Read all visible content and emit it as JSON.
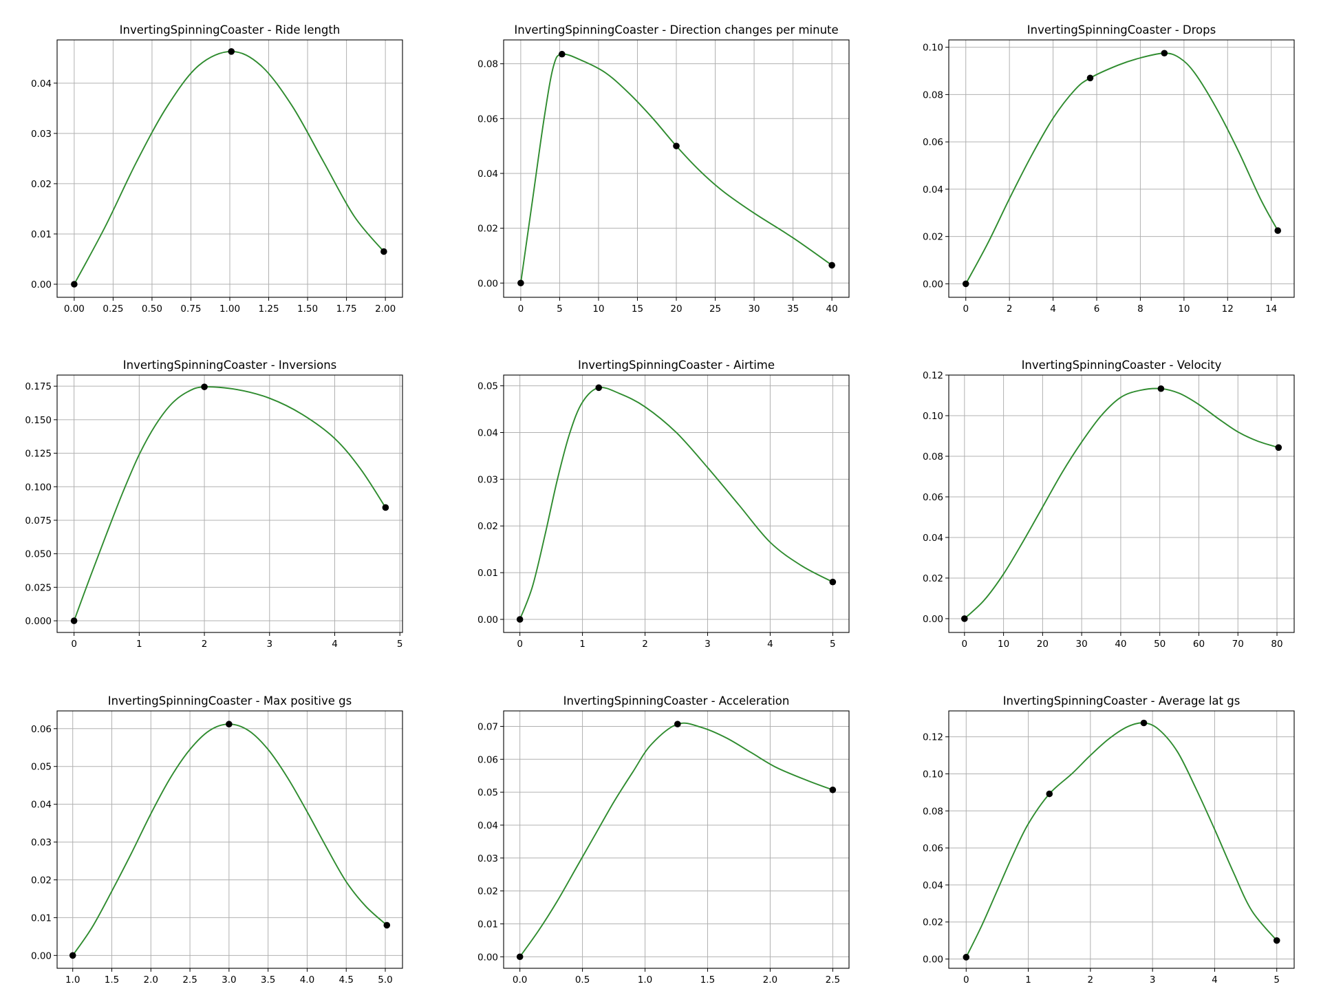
{
  "colors": {
    "line": "#2e8b2e",
    "marker": "#000000",
    "grid": "#b0b0b0"
  },
  "chart_data": [
    {
      "type": "line",
      "title": "InvertingSpinningCoaster - Ride length",
      "xlim": [
        -0.11,
        2.11
      ],
      "ylim": [
        -0.0026,
        0.0486
      ],
      "xticks": [
        0,
        0.25,
        0.5,
        0.75,
        1.0,
        1.25,
        1.5,
        1.75,
        2.0
      ],
      "xtick_labels": [
        "0.00",
        "0.25",
        "0.50",
        "0.75",
        "1.00",
        "1.25",
        "1.50",
        "1.75",
        "2.00"
      ],
      "yticks": [
        0,
        0.01,
        0.02,
        0.03,
        0.04
      ],
      "ytick_labels": [
        "0.00",
        "0.01",
        "0.02",
        "0.03",
        "0.04"
      ],
      "grid": true,
      "points": [
        {
          "x": 0.0,
          "y": 0.0
        },
        {
          "x": 1.01,
          "y": 0.0463
        },
        {
          "x": 1.99,
          "y": 0.0065
        }
      ],
      "curve": [
        [
          0.0,
          0.0
        ],
        [
          0.2,
          0.0115
        ],
        [
          0.4,
          0.0243
        ],
        [
          0.6,
          0.0355
        ],
        [
          0.8,
          0.0435
        ],
        [
          1.01,
          0.0463
        ],
        [
          1.2,
          0.0435
        ],
        [
          1.4,
          0.0355
        ],
        [
          1.6,
          0.0245
        ],
        [
          1.8,
          0.0135
        ],
        [
          1.99,
          0.0065
        ]
      ]
    },
    {
      "type": "line",
      "title": "InvertingSpinningCoaster - Direction changes per minute",
      "xlim": [
        -2.2,
        42.2
      ],
      "ylim": [
        -0.0052,
        0.0887
      ],
      "xticks": [
        0,
        5,
        10,
        15,
        20,
        25,
        30,
        35,
        40
      ],
      "xtick_labels": [
        "0",
        "5",
        "10",
        "15",
        "20",
        "25",
        "30",
        "35",
        "40"
      ],
      "yticks": [
        0,
        0.02,
        0.04,
        0.06,
        0.08
      ],
      "ytick_labels": [
        "0.00",
        "0.02",
        "0.04",
        "0.06",
        "0.08"
      ],
      "grid": true,
      "points": [
        {
          "x": 0.0,
          "y": 0.0
        },
        {
          "x": 5.3,
          "y": 0.0835
        },
        {
          "x": 20.0,
          "y": 0.05
        },
        {
          "x": 40.0,
          "y": 0.0065
        }
      ],
      "curve": [
        [
          0.0,
          0.0
        ],
        [
          1.5,
          0.03
        ],
        [
          3.0,
          0.06
        ],
        [
          4.2,
          0.079
        ],
        [
          5.3,
          0.0835
        ],
        [
          8.0,
          0.081
        ],
        [
          11.0,
          0.0765
        ],
        [
          14.0,
          0.069
        ],
        [
          17.0,
          0.06
        ],
        [
          20.0,
          0.05
        ],
        [
          23.0,
          0.041
        ],
        [
          26.0,
          0.0335
        ],
        [
          30.0,
          0.0255
        ],
        [
          35.0,
          0.0165
        ],
        [
          40.0,
          0.0065
        ]
      ]
    },
    {
      "type": "line",
      "title": "InvertingSpinningCoaster - Drops",
      "xlim": [
        -0.78,
        15.05
      ],
      "ylim": [
        -0.0057,
        0.1031
      ],
      "xticks": [
        0,
        2,
        4,
        6,
        8,
        10,
        12,
        14
      ],
      "xtick_labels": [
        "0",
        "2",
        "4",
        "6",
        "8",
        "10",
        "12",
        "14"
      ],
      "yticks": [
        0,
        0.02,
        0.04,
        0.06,
        0.08,
        0.1
      ],
      "ytick_labels": [
        "0.00",
        "0.02",
        "0.04",
        "0.06",
        "0.08",
        "0.10"
      ],
      "grid": true,
      "points": [
        {
          "x": 0.0,
          "y": 0.0
        },
        {
          "x": 5.7,
          "y": 0.087
        },
        {
          "x": 9.1,
          "y": 0.0975
        },
        {
          "x": 14.3,
          "y": 0.0225
        }
      ],
      "curve": [
        [
          0.0,
          0.0
        ],
        [
          1.0,
          0.017
        ],
        [
          2.0,
          0.036
        ],
        [
          3.0,
          0.054
        ],
        [
          4.0,
          0.07
        ],
        [
          5.0,
          0.082
        ],
        [
          5.7,
          0.087
        ],
        [
          7.0,
          0.0925
        ],
        [
          8.0,
          0.0955
        ],
        [
          9.1,
          0.0975
        ],
        [
          9.8,
          0.0955
        ],
        [
          10.5,
          0.089
        ],
        [
          11.5,
          0.074
        ],
        [
          12.5,
          0.056
        ],
        [
          13.5,
          0.036
        ],
        [
          14.3,
          0.0225
        ]
      ]
    },
    {
      "type": "line",
      "title": "InvertingSpinningCoaster - Inversions",
      "xlim": [
        -0.26,
        5.04
      ],
      "ylim": [
        -0.0087,
        0.1833
      ],
      "xticks": [
        0,
        1,
        2,
        3,
        4,
        5
      ],
      "xtick_labels": [
        "0",
        "1",
        "2",
        "3",
        "4",
        "5"
      ],
      "yticks": [
        0,
        0.025,
        0.05,
        0.075,
        0.1,
        0.125,
        0.15,
        0.175
      ],
      "ytick_labels": [
        "0.000",
        "0.025",
        "0.050",
        "0.075",
        "0.100",
        "0.125",
        "0.150",
        "0.175"
      ],
      "grid": true,
      "points": [
        {
          "x": 0.0,
          "y": 0.0
        },
        {
          "x": 2.0,
          "y": 0.1745
        },
        {
          "x": 4.78,
          "y": 0.0845
        }
      ],
      "curve": [
        [
          0.0,
          0.0
        ],
        [
          0.25,
          0.033
        ],
        [
          0.5,
          0.065
        ],
        [
          0.75,
          0.096
        ],
        [
          1.0,
          0.124
        ],
        [
          1.25,
          0.146
        ],
        [
          1.5,
          0.162
        ],
        [
          1.75,
          0.171
        ],
        [
          2.0,
          0.1745
        ],
        [
          2.5,
          0.1725
        ],
        [
          3.0,
          0.166
        ],
        [
          3.5,
          0.154
        ],
        [
          4.0,
          0.136
        ],
        [
          4.4,
          0.113
        ],
        [
          4.78,
          0.0845
        ]
      ]
    },
    {
      "type": "line",
      "title": "InvertingSpinningCoaster - Airtime",
      "xlim": [
        -0.26,
        5.26
      ],
      "ylim": [
        -0.0028,
        0.0523
      ],
      "xticks": [
        0,
        1,
        2,
        3,
        4,
        5
      ],
      "xtick_labels": [
        "0",
        "1",
        "2",
        "3",
        "4",
        "5"
      ],
      "yticks": [
        0,
        0.01,
        0.02,
        0.03,
        0.04,
        0.05
      ],
      "ytick_labels": [
        "0.00",
        "0.01",
        "0.02",
        "0.03",
        "0.04",
        "0.05"
      ],
      "grid": true,
      "points": [
        {
          "x": 0.0,
          "y": 0.0
        },
        {
          "x": 1.26,
          "y": 0.0496
        },
        {
          "x": 5.0,
          "y": 0.008
        }
      ],
      "curve": [
        [
          0.0,
          0.0
        ],
        [
          0.2,
          0.007
        ],
        [
          0.4,
          0.018
        ],
        [
          0.6,
          0.03
        ],
        [
          0.8,
          0.04
        ],
        [
          1.0,
          0.0465
        ],
        [
          1.26,
          0.0496
        ],
        [
          1.6,
          0.0483
        ],
        [
          2.0,
          0.0455
        ],
        [
          2.5,
          0.04
        ],
        [
          3.0,
          0.0325
        ],
        [
          3.5,
          0.0245
        ],
        [
          4.0,
          0.0165
        ],
        [
          4.5,
          0.0115
        ],
        [
          5.0,
          0.008
        ]
      ]
    },
    {
      "type": "line",
      "title": "InvertingSpinningCoaster - Velocity",
      "xlim": [
        -4.02,
        84.4
      ],
      "ylim": [
        -0.0068,
        0.12
      ],
      "xticks": [
        0,
        10,
        20,
        30,
        40,
        50,
        60,
        70,
        80
      ],
      "xtick_labels": [
        "0",
        "10",
        "20",
        "30",
        "40",
        "50",
        "60",
        "70",
        "80"
      ],
      "yticks": [
        0,
        0.02,
        0.04,
        0.06,
        0.08,
        0.1,
        0.12
      ],
      "ytick_labels": [
        "0.00",
        "0.02",
        "0.04",
        "0.06",
        "0.08",
        "0.10",
        "0.12"
      ],
      "grid": true,
      "points": [
        {
          "x": 0.0,
          "y": 0.0
        },
        {
          "x": 50.3,
          "y": 0.1133
        },
        {
          "x": 80.4,
          "y": 0.0843
        }
      ],
      "curve": [
        [
          0.0,
          0.0
        ],
        [
          5.0,
          0.009
        ],
        [
          10.0,
          0.022
        ],
        [
          15.0,
          0.038
        ],
        [
          20.0,
          0.055
        ],
        [
          25.0,
          0.072
        ],
        [
          30.0,
          0.087
        ],
        [
          35.0,
          0.1
        ],
        [
          40.0,
          0.109
        ],
        [
          45.0,
          0.1125
        ],
        [
          50.3,
          0.1133
        ],
        [
          55.0,
          0.111
        ],
        [
          60.0,
          0.1055
        ],
        [
          65.0,
          0.0985
        ],
        [
          70.0,
          0.092
        ],
        [
          75.0,
          0.0875
        ],
        [
          80.4,
          0.0843
        ]
      ]
    },
    {
      "type": "line",
      "title": "InvertingSpinningCoaster - Max positive gs",
      "xlim": [
        0.8,
        5.22
      ],
      "ylim": [
        -0.0034,
        0.0647
      ],
      "xticks": [
        1.0,
        1.5,
        2.0,
        2.5,
        3.0,
        3.5,
        4.0,
        4.5,
        5.0
      ],
      "xtick_labels": [
        "1.0",
        "1.5",
        "2.0",
        "2.5",
        "3.0",
        "3.5",
        "4.0",
        "4.5",
        "5.0"
      ],
      "yticks": [
        0,
        0.01,
        0.02,
        0.03,
        0.04,
        0.05,
        0.06
      ],
      "ytick_labels": [
        "0.00",
        "0.01",
        "0.02",
        "0.03",
        "0.04",
        "0.05",
        "0.06"
      ],
      "grid": true,
      "points": [
        {
          "x": 1.0,
          "y": 0.0
        },
        {
          "x": 3.0,
          "y": 0.0612
        },
        {
          "x": 5.02,
          "y": 0.008
        }
      ],
      "curve": [
        [
          1.0,
          0.0
        ],
        [
          1.25,
          0.0075
        ],
        [
          1.5,
          0.017
        ],
        [
          1.75,
          0.027
        ],
        [
          2.0,
          0.0375
        ],
        [
          2.25,
          0.047
        ],
        [
          2.5,
          0.0545
        ],
        [
          2.75,
          0.0595
        ],
        [
          3.0,
          0.0612
        ],
        [
          3.25,
          0.0595
        ],
        [
          3.5,
          0.0545
        ],
        [
          3.75,
          0.047
        ],
        [
          4.0,
          0.038
        ],
        [
          4.25,
          0.0285
        ],
        [
          4.5,
          0.0195
        ],
        [
          4.75,
          0.013
        ],
        [
          5.02,
          0.008
        ]
      ]
    },
    {
      "type": "line",
      "title": "InvertingSpinningCoaster - Acceleration",
      "xlim": [
        -0.13,
        2.63
      ],
      "ylim": [
        -0.0035,
        0.0747
      ],
      "xticks": [
        0,
        0.5,
        1.0,
        1.5,
        2.0,
        2.5
      ],
      "xtick_labels": [
        "0.0",
        "0.5",
        "1.0",
        "1.5",
        "2.0",
        "2.5"
      ],
      "yticks": [
        0,
        0.01,
        0.02,
        0.03,
        0.04,
        0.05,
        0.06,
        0.07
      ],
      "ytick_labels": [
        "0.00",
        "0.01",
        "0.02",
        "0.03",
        "0.04",
        "0.05",
        "0.06",
        "0.07"
      ],
      "grid": true,
      "points": [
        {
          "x": 0.0,
          "y": 0.0
        },
        {
          "x": 1.26,
          "y": 0.0707
        },
        {
          "x": 2.5,
          "y": 0.0507
        }
      ],
      "curve": [
        [
          0.0,
          0.0
        ],
        [
          0.15,
          0.008
        ],
        [
          0.3,
          0.017
        ],
        [
          0.45,
          0.027
        ],
        [
          0.6,
          0.037
        ],
        [
          0.75,
          0.047
        ],
        [
          0.9,
          0.056
        ],
        [
          1.05,
          0.0645
        ],
        [
          1.26,
          0.0707
        ],
        [
          1.45,
          0.0697
        ],
        [
          1.65,
          0.0665
        ],
        [
          1.85,
          0.062
        ],
        [
          2.05,
          0.0575
        ],
        [
          2.3,
          0.0535
        ],
        [
          2.5,
          0.0507
        ]
      ]
    },
    {
      "type": "line",
      "title": "InvertingSpinningCoaster - Average lat gs",
      "xlim": [
        -0.28,
        5.28
      ],
      "ylim": [
        -0.005,
        0.134
      ],
      "xticks": [
        0,
        1,
        2,
        3,
        4,
        5
      ],
      "xtick_labels": [
        "0",
        "1",
        "2",
        "3",
        "4",
        "5"
      ],
      "yticks": [
        0,
        0.02,
        0.04,
        0.06,
        0.08,
        0.1,
        0.12
      ],
      "ytick_labels": [
        "0.00",
        "0.02",
        "0.04",
        "0.06",
        "0.08",
        "0.10",
        "0.12"
      ],
      "grid": true,
      "points": [
        {
          "x": 0.0,
          "y": 0.001
        },
        {
          "x": 1.34,
          "y": 0.0892
        },
        {
          "x": 2.86,
          "y": 0.1275
        },
        {
          "x": 5.0,
          "y": 0.01
        }
      ],
      "curve": [
        [
          0.0,
          0.001
        ],
        [
          0.25,
          0.018
        ],
        [
          0.5,
          0.037
        ],
        [
          0.75,
          0.056
        ],
        [
          1.0,
          0.073
        ],
        [
          1.34,
          0.0892
        ],
        [
          1.7,
          0.1
        ],
        [
          2.0,
          0.11
        ],
        [
          2.3,
          0.119
        ],
        [
          2.6,
          0.1255
        ],
        [
          2.86,
          0.1275
        ],
        [
          3.1,
          0.124
        ],
        [
          3.4,
          0.112
        ],
        [
          3.7,
          0.092
        ],
        [
          4.0,
          0.07
        ],
        [
          4.3,
          0.047
        ],
        [
          4.6,
          0.026
        ],
        [
          5.0,
          0.01
        ]
      ]
    }
  ]
}
